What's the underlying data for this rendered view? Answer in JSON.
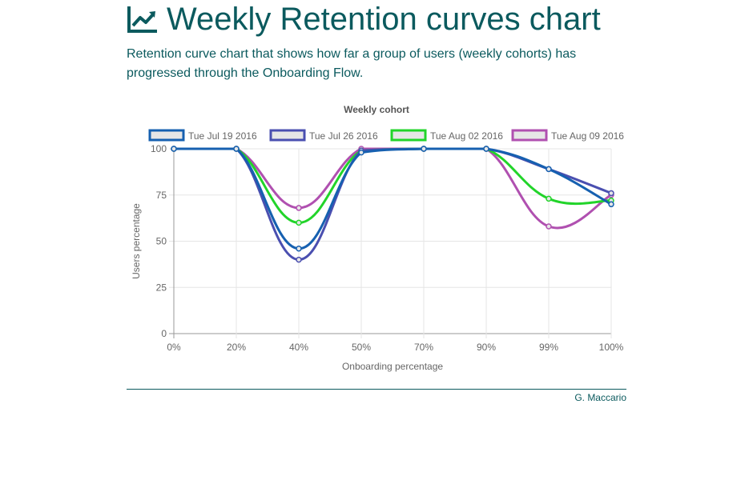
{
  "header": {
    "title": "Weekly Retention curves chart",
    "subtitle": "Retention curve chart that shows how far a group of users (weekly cohorts) has progressed through the Onboarding Flow."
  },
  "footer": {
    "author": "G. Maccario"
  },
  "icons": {
    "title_icon": "line-chart-icon"
  },
  "colors": {
    "accent": "#0b5a5e"
  },
  "chart_data": {
    "type": "line",
    "title": "Weekly cohort",
    "xlabel": "Onboarding percentage",
    "ylabel": "Users percentage",
    "categories": [
      "0%",
      "20%",
      "40%",
      "50%",
      "70%",
      "90%",
      "99%",
      "100%"
    ],
    "ylim": [
      0,
      100
    ],
    "yticks": [
      0,
      25,
      50,
      75,
      100
    ],
    "grid": true,
    "legend_position": "top",
    "series": [
      {
        "name": "Tue Jul 19 2016",
        "color": "#1660b0",
        "values": [
          100,
          100,
          46,
          98,
          100,
          100,
          89,
          70
        ]
      },
      {
        "name": "Tue Jul 26 2016",
        "color": "#4a4fb0",
        "values": [
          100,
          100,
          40,
          99,
          100,
          100,
          89,
          76
        ]
      },
      {
        "name": "Tue Aug 02 2016",
        "color": "#22d42a",
        "values": [
          100,
          100,
          60,
          99,
          100,
          100,
          73,
          72
        ]
      },
      {
        "name": "Tue Aug 09 2016",
        "color": "#b050b0",
        "values": [
          100,
          100,
          68,
          100,
          100,
          100,
          58,
          75
        ]
      }
    ]
  }
}
